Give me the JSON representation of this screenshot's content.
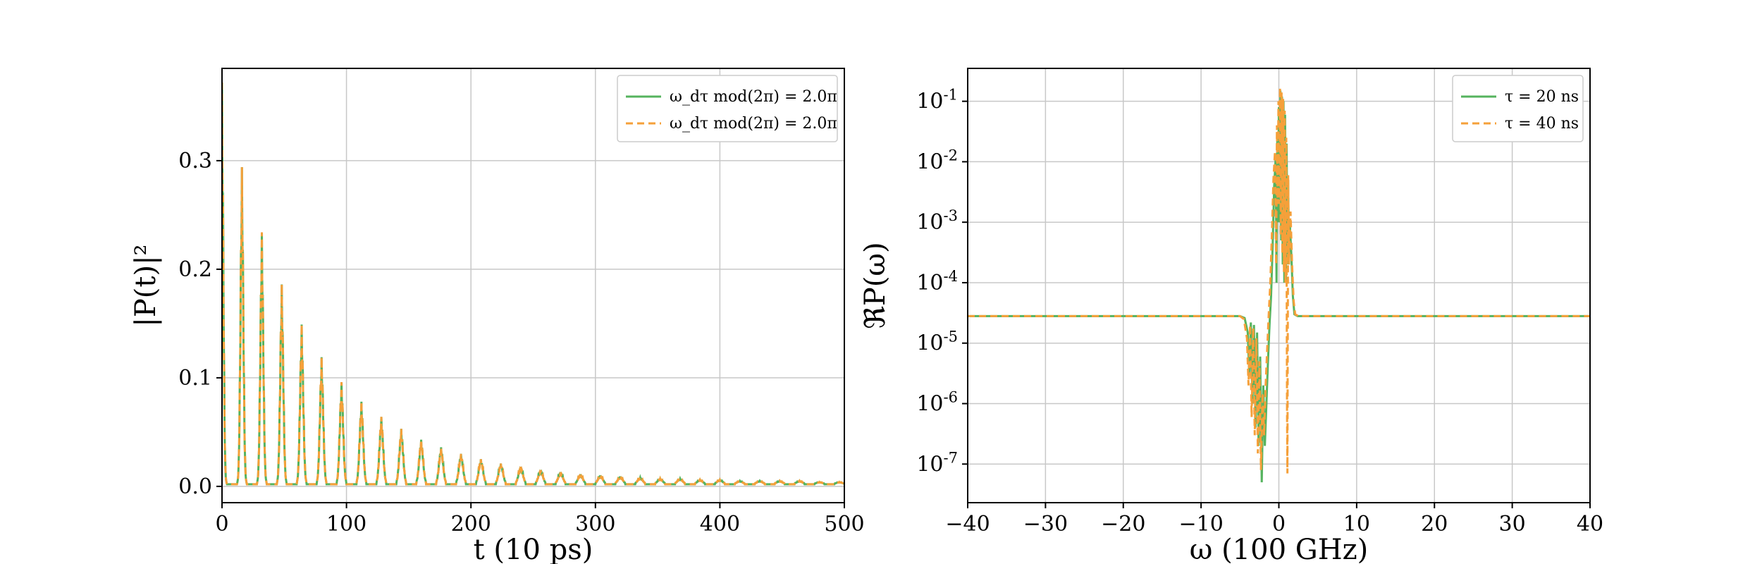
{
  "chart_data": [
    {
      "type": "line",
      "xlabel": "t (10 ps)",
      "ylabel": "|P(t)|²",
      "xlim": [
        0,
        500
      ],
      "ylim": [
        -0.015,
        0.385
      ],
      "xticks": [
        0,
        100,
        200,
        300,
        400,
        500
      ],
      "xtick_labels": [
        "0",
        "100",
        "200",
        "300",
        "400",
        "500"
      ],
      "yticks": [
        0.0,
        0.1,
        0.2,
        0.3
      ],
      "ytick_labels": [
        "0.0",
        "0.1",
        "0.2",
        "0.3"
      ],
      "grid": true,
      "legend_position": "top-right",
      "pulse_period": 16,
      "series": [
        {
          "name": "ω_dτ mod(2π) = 2.0π",
          "color": "#55b35e",
          "style": "solid",
          "peaks": [
            [
              0,
              0.37
            ],
            [
              16,
              0.292
            ],
            [
              32,
              0.232
            ],
            [
              48,
              0.184
            ],
            [
              64,
              0.147
            ],
            [
              80,
              0.117
            ],
            [
              96,
              0.094
            ],
            [
              112,
              0.076
            ],
            [
              128,
              0.062
            ],
            [
              144,
              0.051
            ],
            [
              160,
              0.041
            ],
            [
              176,
              0.034
            ],
            [
              192,
              0.028
            ],
            [
              208,
              0.023
            ],
            [
              224,
              0.019
            ],
            [
              240,
              0.016
            ],
            [
              256,
              0.013
            ],
            [
              272,
              0.011
            ],
            [
              288,
              0.009
            ],
            [
              304,
              0.008
            ],
            [
              320,
              0.007
            ],
            [
              336,
              0.006
            ],
            [
              352,
              0.005
            ],
            [
              368,
              0.005
            ],
            [
              384,
              0.004
            ],
            [
              400,
              0.004
            ],
            [
              416,
              0.003
            ],
            [
              432,
              0.003
            ],
            [
              448,
              0.003
            ],
            [
              464,
              0.003
            ],
            [
              480,
              0.002
            ],
            [
              496,
              0.002
            ]
          ]
        },
        {
          "name": "ω_dτ mod(2π) = 2.0π",
          "color": "#f5a03a",
          "style": "dashed",
          "peaks": [
            [
              0,
              0.37
            ],
            [
              16,
              0.292
            ],
            [
              32,
              0.232
            ],
            [
              48,
              0.184
            ],
            [
              64,
              0.147
            ],
            [
              80,
              0.117
            ],
            [
              96,
              0.094
            ],
            [
              112,
              0.076
            ],
            [
              128,
              0.062
            ],
            [
              144,
              0.051
            ],
            [
              160,
              0.041
            ],
            [
              176,
              0.034
            ],
            [
              192,
              0.028
            ],
            [
              208,
              0.023
            ],
            [
              224,
              0.019
            ],
            [
              240,
              0.016
            ],
            [
              256,
              0.013
            ],
            [
              272,
              0.011
            ],
            [
              288,
              0.009
            ],
            [
              304,
              0.008
            ],
            [
              320,
              0.007
            ],
            [
              336,
              0.006
            ],
            [
              352,
              0.005
            ],
            [
              368,
              0.005
            ],
            [
              384,
              0.004
            ],
            [
              400,
              0.004
            ],
            [
              416,
              0.003
            ],
            [
              432,
              0.003
            ],
            [
              448,
              0.003
            ],
            [
              464,
              0.003
            ],
            [
              480,
              0.002
            ],
            [
              496,
              0.002
            ]
          ]
        }
      ]
    },
    {
      "type": "line",
      "xlabel": "ω (100 GHz)",
      "ylabel": "ℜP(ω)",
      "y_scale": "log",
      "xlim": [
        -40,
        40
      ],
      "ylim": [
        2.3e-08,
        0.35
      ],
      "xticks": [
        -40,
        -30,
        -20,
        -10,
        0,
        10,
        20,
        30,
        40
      ],
      "xtick_labels": [
        "−40",
        "−30",
        "−20",
        "−10",
        "0",
        "10",
        "20",
        "30",
        "40"
      ],
      "yticks": [
        1e-07,
        1e-06,
        1e-05,
        0.0001,
        0.001,
        0.01,
        0.1
      ],
      "ytick_labels": [
        "10-7",
        "10-6",
        "10-5",
        "10-4",
        "10-3",
        "10-2",
        "10-1"
      ],
      "grid": true,
      "legend_position": "top-right",
      "series": [
        {
          "name": "τ = 20 ns",
          "color": "#55b35e",
          "style": "solid",
          "points": [
            [
              -40,
              2.8e-05
            ],
            [
              -5,
              2.8e-05
            ],
            [
              -4.4,
              2.6e-05
            ],
            [
              -4.0,
              1.5e-05
            ],
            [
              -3.8,
              3e-06
            ],
            [
              -3.6,
              2.2e-05
            ],
            [
              -3.4,
              1e-06
            ],
            [
              -3.2,
              2e-05
            ],
            [
              -3.0,
              4e-07
            ],
            [
              -2.8,
              1.5e-05
            ],
            [
              -2.6,
              2e-07
            ],
            [
              -2.4,
              6e-06
            ],
            [
              -2.2,
              5e-08
            ],
            [
              -2.0,
              2e-06
            ],
            [
              -1.8,
              2e-07
            ],
            [
              -1.6,
              1e-06
            ],
            [
              -1.4,
              5e-06
            ],
            [
              -1.2,
              2e-05
            ],
            [
              -1.0,
              6e-05
            ],
            [
              -0.8,
              0.0004
            ],
            [
              -0.6,
              0.004
            ],
            [
              -0.4,
              0.012
            ],
            [
              -0.3,
              0.0001
            ],
            [
              -0.2,
              0.03
            ],
            [
              -0.1,
              0.001
            ],
            [
              0.0,
              0.08
            ],
            [
              0.1,
              0.001
            ],
            [
              0.2,
              0.15
            ],
            [
              0.3,
              0.0005
            ],
            [
              0.4,
              0.12
            ],
            [
              0.5,
              0.0002
            ],
            [
              0.6,
              0.1
            ],
            [
              0.7,
              0.0001
            ],
            [
              0.8,
              0.06
            ],
            [
              0.9,
              0.0001
            ],
            [
              1.0,
              0.02
            ],
            [
              1.1,
              0.0002
            ],
            [
              1.2,
              0.005
            ],
            [
              1.3,
              0.0002
            ],
            [
              1.4,
              0.001
            ],
            [
              1.6,
              0.0003
            ],
            [
              1.8,
              6e-05
            ],
            [
              2.0,
              3e-05
            ],
            [
              2.4,
              2.8e-05
            ],
            [
              40,
              2.8e-05
            ]
          ]
        },
        {
          "name": "τ = 40 ns",
          "color": "#f5a03a",
          "style": "dashed",
          "points": [
            [
              -40,
              2.8e-05
            ],
            [
              -5,
              2.8e-05
            ],
            [
              -4.5,
              2.5e-05
            ],
            [
              -4.1,
              1.2e-05
            ],
            [
              -3.9,
              2e-06
            ],
            [
              -3.7,
              2e-05
            ],
            [
              -3.5,
              6e-07
            ],
            [
              -3.3,
              1.8e-05
            ],
            [
              -3.1,
              3e-07
            ],
            [
              -2.9,
              1.2e-05
            ],
            [
              -2.7,
              1.5e-07
            ],
            [
              -2.5,
              5e-06
            ],
            [
              -2.3,
              8e-08
            ],
            [
              -2.1,
              1.5e-06
            ],
            [
              -1.9,
              3e-07
            ],
            [
              -1.7,
              2e-06
            ],
            [
              -1.5,
              8e-06
            ],
            [
              -1.3,
              3e-05
            ],
            [
              -1.1,
              0.0001
            ],
            [
              -0.9,
              0.0006
            ],
            [
              -0.7,
              0.005
            ],
            [
              -0.5,
              0.015
            ],
            [
              -0.35,
              0.0002
            ],
            [
              -0.25,
              0.04
            ],
            [
              -0.15,
              0.002
            ],
            [
              -0.05,
              0.1
            ],
            [
              0.05,
              0.002
            ],
            [
              0.15,
              0.17
            ],
            [
              0.25,
              0.0006
            ],
            [
              0.35,
              0.14
            ],
            [
              0.45,
              0.0003
            ],
            [
              0.55,
              0.11
            ],
            [
              0.65,
              0.00015
            ],
            [
              0.75,
              0.07
            ],
            [
              0.85,
              0.0001
            ],
            [
              0.95,
              0.025
            ],
            [
              1.05,
              8e-07
            ],
            [
              1.1,
              7e-08
            ],
            [
              1.2,
              0.006
            ],
            [
              1.3,
              0.0002
            ],
            [
              1.5,
              0.0015
            ],
            [
              1.7,
              0.0002
            ],
            [
              1.9,
              5e-05
            ],
            [
              2.1,
              3e-05
            ],
            [
              2.5,
              2.8e-05
            ],
            [
              40,
              2.8e-05
            ]
          ]
        }
      ]
    }
  ]
}
